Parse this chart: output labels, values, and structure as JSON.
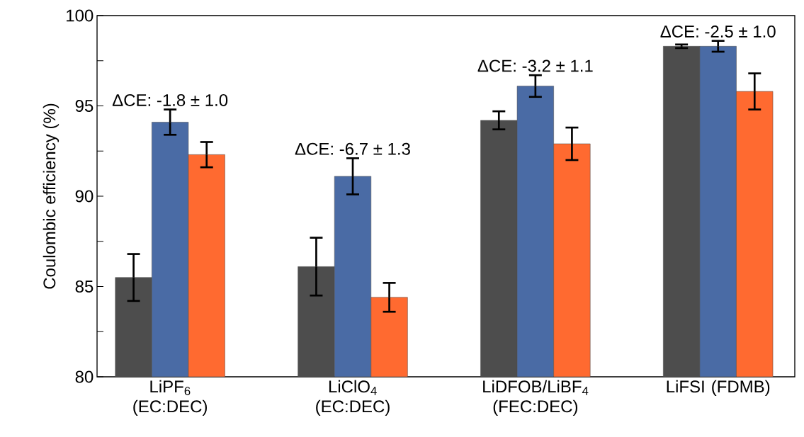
{
  "chart_data": {
    "type": "bar",
    "ylabel": "Coulombic efficiency (%)",
    "categories": [
      "LiPF$_{6}$ (EC:DEC)",
      "LiClO$_{4}$ (EC:DEC)",
      "LiDFOB/LiBF$_{4}$ (FEC:DEC)",
      "LiFSI (FDMB)"
    ],
    "series": [
      {
        "color": "#4d4d4d",
        "values": [
          85.5,
          86.1,
          94.2,
          98.3
        ],
        "errors": [
          1.3,
          1.6,
          0.5,
          0.1
        ]
      },
      {
        "color": "#4a6ba5",
        "values": [
          94.1,
          91.1,
          96.1,
          98.3
        ],
        "errors": [
          0.7,
          1.0,
          0.6,
          0.3
        ]
      },
      {
        "color": "#ff6a30",
        "values": [
          92.3,
          84.4,
          92.9,
          95.8
        ],
        "errors": [
          0.7,
          0.8,
          0.9,
          1.0
        ]
      }
    ],
    "ylim": [
      80,
      100
    ],
    "yticks": [
      80,
      {
        "value": 82.5,
        "label": null
      },
      85,
      {
        "value": 87.5,
        "label": null
      },
      90,
      {
        "value": 92.5,
        "label": null
      },
      95,
      {
        "value": 97.5,
        "label": null
      },
      100
    ],
    "annotations": [
      "ΔCE: -1.8 ± 1.0",
      "ΔCE: -6.7 ± 1.3",
      "ΔCE: -3.2 ± 1.1",
      "ΔCE: -2.5 ± 1.0"
    ],
    "grid": false
  }
}
